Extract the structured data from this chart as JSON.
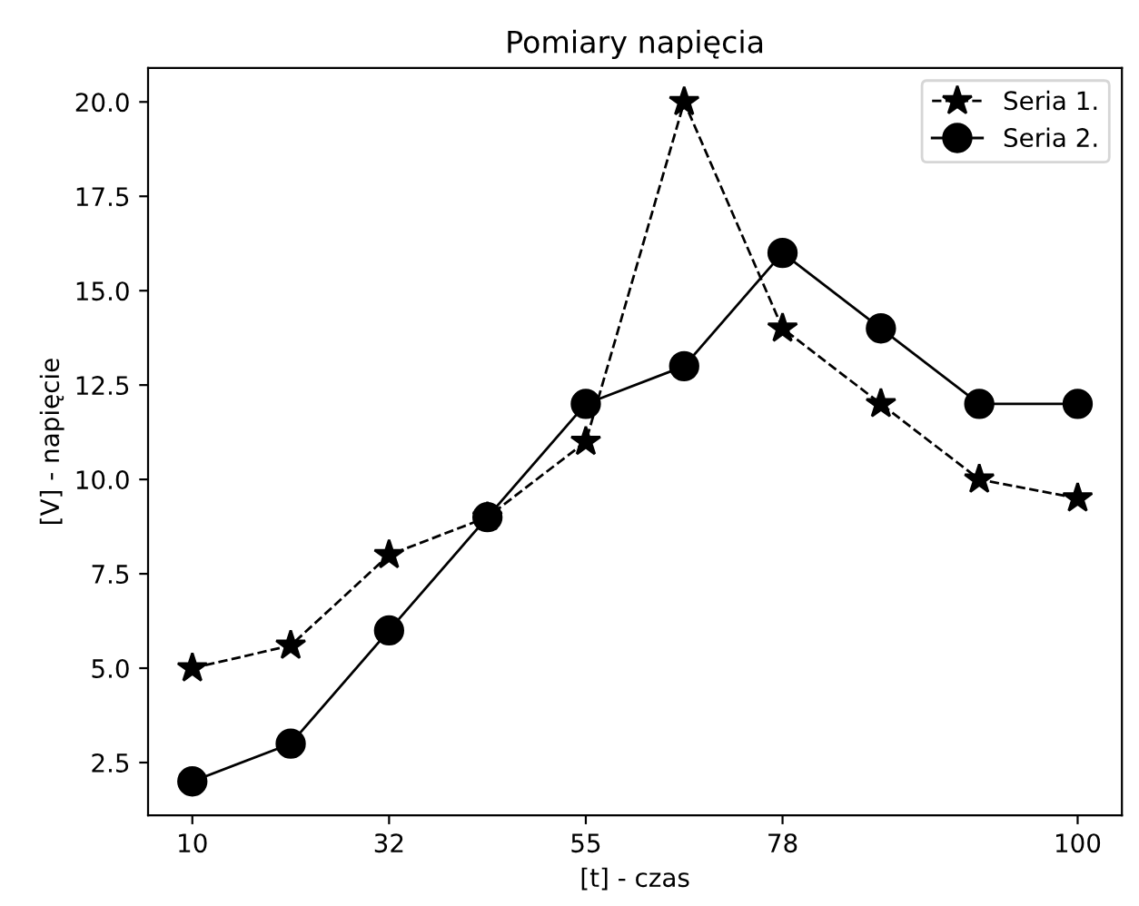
{
  "chart_data": {
    "type": "line",
    "title": "Pomiary napięcia",
    "xlabel": "[t] - czas",
    "ylabel": "[V] - napięcie",
    "categories": [
      "10",
      null,
      "32",
      null,
      "55",
      null,
      "78",
      null,
      null,
      "100"
    ],
    "series": [
      {
        "name": "Seria 1.",
        "color": "#000000",
        "marker": "star",
        "line_style": "dashed",
        "values": [
          5,
          5.6,
          8,
          9,
          11,
          20,
          14,
          12,
          10,
          9.5
        ]
      },
      {
        "name": "Seria 2.",
        "color": "#000000",
        "marker": "circle",
        "line_style": "solid",
        "values": [
          2,
          3,
          6,
          9,
          12,
          13,
          16,
          14,
          12,
          12
        ]
      }
    ],
    "ylim": [
      1.1,
      20.9
    ],
    "yticks": [
      {
        "value": 2.5,
        "label": "2.5"
      },
      {
        "value": 5,
        "label": "5.0"
      },
      {
        "value": 7.5,
        "label": "7.5"
      },
      {
        "value": 10,
        "label": "10.0"
      },
      {
        "value": 12.5,
        "label": "12.5"
      },
      {
        "value": 15,
        "label": "15.0"
      },
      {
        "value": 17.5,
        "label": "17.5"
      },
      {
        "value": 20,
        "label": "20.0"
      }
    ],
    "grid": false,
    "legend": "top right"
  }
}
